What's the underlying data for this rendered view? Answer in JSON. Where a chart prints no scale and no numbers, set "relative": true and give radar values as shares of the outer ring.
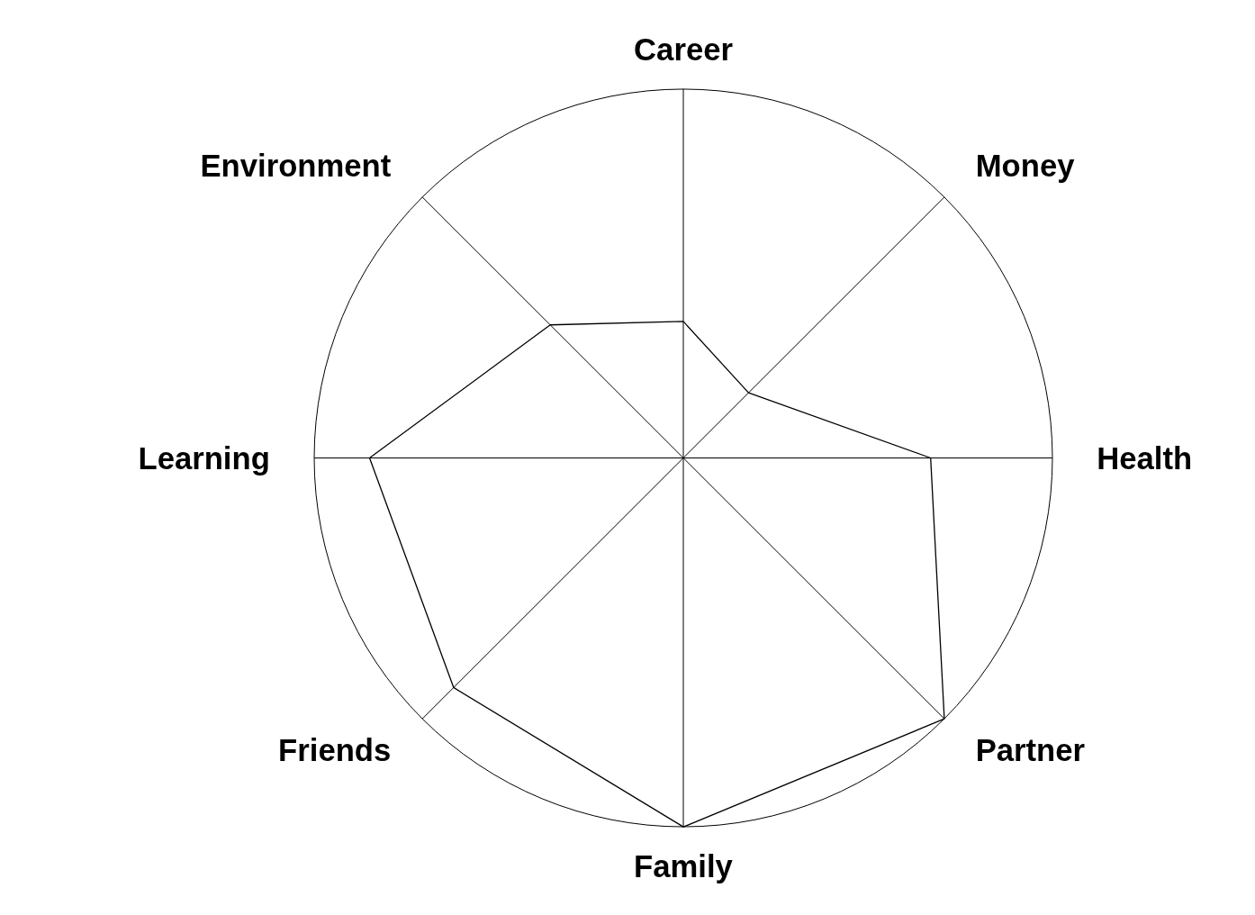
{
  "chart_data": {
    "type": "radar",
    "relative": true,
    "grid": true,
    "categories": [
      "Career",
      "Money",
      "Health",
      "Partner",
      "Family",
      "Friends",
      "Learning",
      "Environment"
    ],
    "series": [
      {
        "color": "#000000",
        "values": [
          0.37,
          0.25,
          0.67,
          1.0,
          1.0,
          0.88,
          0.85,
          0.51
        ]
      }
    ]
  }
}
